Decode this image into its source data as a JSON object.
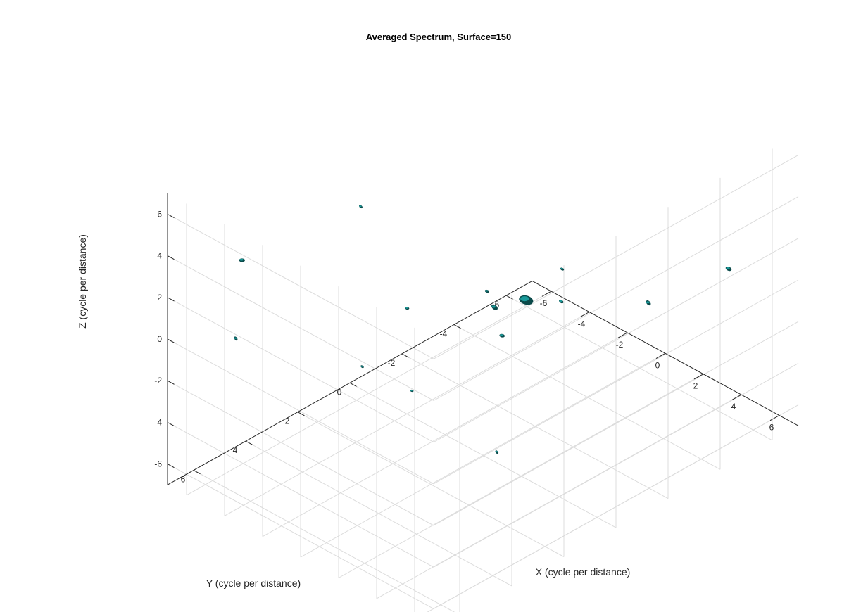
{
  "chart_data": {
    "type": "scatter",
    "subtype": "3d-isosurface",
    "title": "Averaged Spectrum, Surface=150",
    "xlabel": "X (cycle per distance)",
    "ylabel": "Y (cycle per distance)",
    "zlabel": "Z (cycle per distance)",
    "xlim": [
      -7,
      7
    ],
    "ylim": [
      -7,
      7
    ],
    "zlim": [
      -7,
      7
    ],
    "xticks": [
      -6,
      -4,
      -2,
      0,
      2,
      4,
      6
    ],
    "yticks": [
      -6,
      -4,
      -2,
      0,
      2,
      4,
      6
    ],
    "zticks": [
      -6,
      -4,
      -2,
      0,
      2,
      4,
      6
    ],
    "grid": true,
    "surface_color": "#1a9a9a",
    "surface_color_dark": "#0b4a4a",
    "blobs": [
      {
        "x": 0.9,
        "y": -1.0,
        "z": 0.2,
        "s": 3.2
      },
      {
        "x": 0.2,
        "y": -0.3,
        "z": 0.0,
        "s": 1.6
      },
      {
        "x": -5.0,
        "y": 5.6,
        "z": 3.8,
        "s": 1.3
      },
      {
        "x": 5.8,
        "y": -5.2,
        "z": 1.2,
        "s": 1.4
      },
      {
        "x": 3.5,
        "y": -3.8,
        "z": -0.6,
        "s": 1.3
      },
      {
        "x": -4.2,
        "y": -3.8,
        "z": -6.0,
        "s": 1.2
      },
      {
        "x": 2.2,
        "y": -1.4,
        "z": 0.5,
        "s": 1.1
      },
      {
        "x": -5.6,
        "y": 5.4,
        "z": -0.4,
        "s": 1.0
      },
      {
        "x": 4.6,
        "y": 3.2,
        "z": 5.4,
        "s": 1.0
      },
      {
        "x": -3.0,
        "y": 2.5,
        "z": 5.2,
        "s": 0.9
      },
      {
        "x": 1.5,
        "y": 4.0,
        "z": 3.6,
        "s": 0.9
      },
      {
        "x": -2.0,
        "y": -4.5,
        "z": -2.2,
        "s": 0.9
      },
      {
        "x": 3.2,
        "y": 1.8,
        "z": -4.0,
        "s": 0.9
      },
      {
        "x": -1.0,
        "y": 2.0,
        "z": -3.0,
        "s": 0.8
      },
      {
        "x": 0.5,
        "y": 5.0,
        "z": 1.0,
        "s": 0.8
      }
    ]
  }
}
